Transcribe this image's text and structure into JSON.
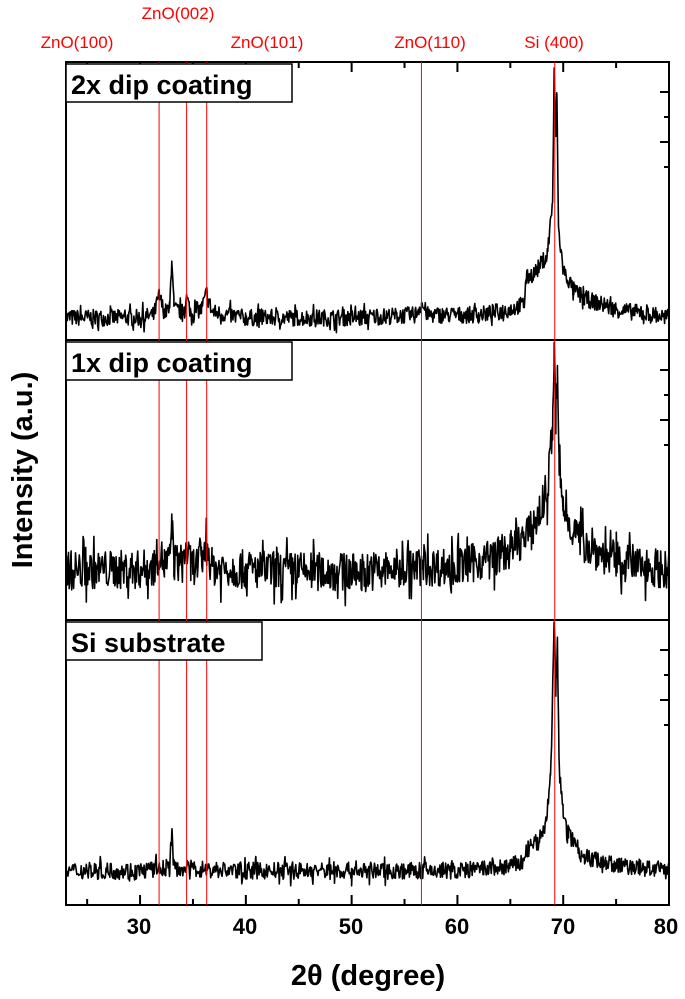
{
  "chart_data": {
    "type": "line",
    "xlabel": "2θ (degree)",
    "ylabel": "Intensity (a.u.)",
    "xlim": [
      23,
      80
    ],
    "x_ticks": [
      30,
      40,
      50,
      60,
      70,
      80
    ],
    "x_minor_step": 5,
    "y_tick_labels": false,
    "grid": false,
    "reference_lines": [
      {
        "label": "ZnO(100)",
        "x": 31.8
      },
      {
        "label": "ZnO(002)",
        "x": 34.4
      },
      {
        "label": "ZnO(101)",
        "x": 36.3
      },
      {
        "label": "ZnO(110)",
        "x": 56.6
      },
      {
        "label": "Si (400)",
        "x": 69.2
      }
    ],
    "reference_color": "#ff0000",
    "line_color": "#000000",
    "panels": [
      {
        "name": "2x dip coating",
        "ylim": [
          0,
          100
        ],
        "noise": 3,
        "points": [
          [
            23,
            8
          ],
          [
            30,
            8
          ],
          [
            31.3,
            9
          ],
          [
            31.8,
            16
          ],
          [
            32.3,
            10
          ],
          [
            32.8,
            11
          ],
          [
            33.0,
            30
          ],
          [
            33.2,
            11
          ],
          [
            34.0,
            10
          ],
          [
            34.4,
            15
          ],
          [
            34.8,
            10
          ],
          [
            35.8,
            11
          ],
          [
            36.3,
            17
          ],
          [
            36.8,
            10
          ],
          [
            40,
            8
          ],
          [
            50,
            8
          ],
          [
            56.0,
            9
          ],
          [
            56.6,
            13
          ],
          [
            57.2,
            9
          ],
          [
            62,
            9
          ],
          [
            65,
            11
          ],
          [
            66.3,
            13
          ],
          [
            66.5,
            22
          ],
          [
            67.5,
            25
          ],
          [
            68.5,
            31
          ],
          [
            69.0,
            50
          ],
          [
            69.15,
            96
          ],
          [
            69.3,
            72
          ],
          [
            69.4,
            90
          ],
          [
            69.55,
            40
          ],
          [
            70,
            25
          ],
          [
            71,
            18
          ],
          [
            72,
            15
          ],
          [
            75,
            11
          ],
          [
            80,
            8
          ]
        ]
      },
      {
        "name": "1x dip coating",
        "ylim": [
          0,
          100
        ],
        "noise": 7,
        "points": [
          [
            23,
            18
          ],
          [
            30,
            18
          ],
          [
            31.3,
            19
          ],
          [
            31.8,
            24
          ],
          [
            32.3,
            20
          ],
          [
            32.8,
            21
          ],
          [
            33.0,
            35
          ],
          [
            33.2,
            21
          ],
          [
            34.0,
            20
          ],
          [
            34.4,
            25
          ],
          [
            34.8,
            19
          ],
          [
            35.8,
            21
          ],
          [
            36.3,
            26
          ],
          [
            36.8,
            19
          ],
          [
            40,
            18
          ],
          [
            50,
            17
          ],
          [
            56.6,
            19
          ],
          [
            60,
            19
          ],
          [
            63,
            22
          ],
          [
            65,
            25
          ],
          [
            67,
            32
          ],
          [
            68.5,
            45
          ],
          [
            69.0,
            70
          ],
          [
            69.15,
            95
          ],
          [
            69.3,
            72
          ],
          [
            69.45,
            88
          ],
          [
            69.6,
            55
          ],
          [
            70,
            40
          ],
          [
            71,
            32
          ],
          [
            72,
            27
          ],
          [
            75,
            21
          ],
          [
            80,
            18
          ]
        ]
      },
      {
        "name": "Si substrate",
        "ylim": [
          0,
          100
        ],
        "noise": 3,
        "points": [
          [
            23,
            12
          ],
          [
            30,
            12
          ],
          [
            32.8,
            13
          ],
          [
            33.0,
            26
          ],
          [
            33.2,
            13
          ],
          [
            40,
            12
          ],
          [
            50,
            12
          ],
          [
            60,
            12
          ],
          [
            64,
            13
          ],
          [
            66.3,
            15
          ],
          [
            66.5,
            19
          ],
          [
            67.5,
            22
          ],
          [
            68.3,
            27
          ],
          [
            68.8,
            45
          ],
          [
            69.15,
            98
          ],
          [
            69.3,
            75
          ],
          [
            69.45,
            92
          ],
          [
            69.6,
            50
          ],
          [
            70,
            32
          ],
          [
            70.5,
            25
          ],
          [
            72,
            17
          ],
          [
            75,
            14
          ],
          [
            80,
            12
          ]
        ]
      }
    ]
  }
}
